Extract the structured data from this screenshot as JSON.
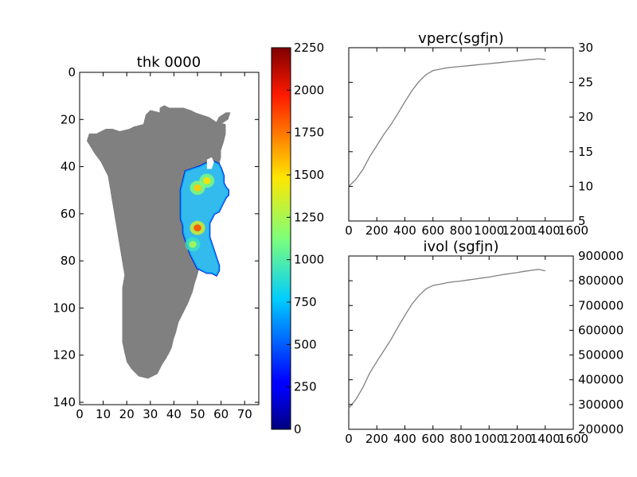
{
  "figure": {
    "background_color": "#ffffff",
    "axis_color": "#000000"
  },
  "chart_data": [
    {
      "type": "heatmap",
      "title": "thk 0000",
      "xlim": [
        0,
        76
      ],
      "ylim": [
        141,
        0
      ],
      "x_ticks": [
        "0",
        "10",
        "20",
        "30",
        "40",
        "50",
        "60",
        "70"
      ],
      "y_ticks": [
        "0",
        "20",
        "40",
        "60",
        "80",
        "100",
        "120",
        "140"
      ],
      "mask_color": "#808080",
      "grid": false,
      "landmass_outline": [
        [
          23,
          23
        ],
        [
          27,
          22
        ],
        [
          28,
          18
        ],
        [
          30,
          16
        ],
        [
          34,
          17
        ],
        [
          34,
          15
        ],
        [
          36,
          14
        ],
        [
          38,
          15
        ],
        [
          41,
          15
        ],
        [
          44,
          15
        ],
        [
          47,
          16
        ],
        [
          49,
          17
        ],
        [
          52,
          18
        ],
        [
          55,
          19
        ],
        [
          58,
          21
        ],
        [
          62,
          22
        ],
        [
          62,
          26
        ],
        [
          61,
          30
        ],
        [
          60,
          33
        ],
        [
          60,
          36
        ],
        [
          59,
          40
        ],
        [
          59,
          44
        ],
        [
          58,
          49
        ],
        [
          57,
          53
        ],
        [
          56,
          57
        ],
        [
          55,
          62
        ],
        [
          54,
          67
        ],
        [
          53,
          72
        ],
        [
          52,
          77
        ],
        [
          51,
          82
        ],
        [
          50,
          86
        ],
        [
          49,
          89
        ],
        [
          48,
          93
        ],
        [
          46,
          98
        ],
        [
          44,
          102
        ],
        [
          42,
          106
        ],
        [
          41,
          110
        ],
        [
          40,
          113
        ],
        [
          39,
          117
        ],
        [
          37,
          121
        ],
        [
          35,
          124
        ],
        [
          33,
          128
        ],
        [
          29,
          130
        ],
        [
          25,
          129
        ],
        [
          22,
          126
        ],
        [
          20,
          123
        ],
        [
          19,
          119
        ],
        [
          18,
          114
        ],
        [
          18,
          109
        ],
        [
          18,
          104
        ],
        [
          18,
          98
        ],
        [
          18,
          92
        ],
        [
          19,
          86
        ],
        [
          18,
          80
        ],
        [
          17,
          74
        ],
        [
          16,
          68
        ],
        [
          15,
          62
        ],
        [
          14,
          56
        ],
        [
          13,
          50
        ],
        [
          12,
          44
        ],
        [
          9,
          38
        ],
        [
          6,
          34
        ],
        [
          3,
          29
        ],
        [
          4,
          26
        ],
        [
          7,
          26
        ],
        [
          9,
          25
        ],
        [
          11,
          24
        ],
        [
          14,
          24
        ],
        [
          17,
          25
        ],
        [
          21,
          24
        ]
      ],
      "island_outline": [
        [
          57,
          23
        ],
        [
          59,
          19
        ],
        [
          62,
          17
        ],
        [
          64,
          17
        ],
        [
          63,
          20
        ],
        [
          60,
          22
        ]
      ],
      "ice_body_outline": [
        [
          44,
          46
        ],
        [
          45,
          42
        ],
        [
          48,
          41
        ],
        [
          51,
          40
        ],
        [
          53,
          39
        ],
        [
          55,
          38
        ],
        [
          57,
          38
        ],
        [
          59,
          39
        ],
        [
          60,
          41
        ],
        [
          61,
          44
        ],
        [
          61,
          47
        ],
        [
          62,
          49
        ],
        [
          63,
          50
        ],
        [
          63,
          52
        ],
        [
          62,
          53
        ],
        [
          61,
          55
        ],
        [
          60,
          57
        ],
        [
          59,
          59
        ],
        [
          57,
          60
        ],
        [
          56,
          62
        ],
        [
          55,
          64
        ],
        [
          55,
          67
        ],
        [
          55,
          70
        ],
        [
          56,
          73
        ],
        [
          57,
          76
        ],
        [
          58,
          79
        ],
        [
          59,
          82
        ],
        [
          59,
          84
        ],
        [
          58,
          86
        ],
        [
          56,
          85
        ],
        [
          54,
          85
        ],
        [
          52,
          84
        ],
        [
          50,
          83
        ],
        [
          49,
          81
        ],
        [
          48,
          79
        ],
        [
          47,
          77
        ],
        [
          46,
          74
        ],
        [
          45,
          71
        ],
        [
          44,
          68
        ],
        [
          44,
          65
        ],
        [
          43,
          62
        ],
        [
          43,
          59
        ],
        [
          43,
          56
        ],
        [
          43,
          53
        ],
        [
          43,
          50
        ]
      ],
      "ice_hole_outline": [
        [
          54,
          37
        ],
        [
          56,
          36
        ],
        [
          57,
          38
        ],
        [
          56,
          41
        ],
        [
          54,
          41
        ]
      ],
      "hotspots": [
        {
          "x": 50,
          "y": 66,
          "value": 1850
        },
        {
          "x": 50,
          "y": 49,
          "value": 1550
        },
        {
          "x": 54,
          "y": 46,
          "value": 1500
        },
        {
          "x": 48,
          "y": 73,
          "value": 1250
        }
      ],
      "colorbar": {
        "min": 0,
        "max": 2250,
        "ticks": [
          "0",
          "250",
          "500",
          "750",
          "1000",
          "1250",
          "1500",
          "1750",
          "2000",
          "2250"
        ],
        "colormap": "jet"
      }
    },
    {
      "type": "line",
      "title": "vperc(sgfjn)",
      "xlim": [
        0,
        1600
      ],
      "ylim": [
        5,
        30
      ],
      "x_ticks": [
        "0",
        "200",
        "400",
        "600",
        "800",
        "1000",
        "1200",
        "1400",
        "1600"
      ],
      "y_ticks": [
        "5",
        "10",
        "15",
        "20",
        "25",
        "30"
      ],
      "y_axis_side": "right",
      "series": [
        {
          "color": "#808080",
          "x": [
            0,
            50,
            100,
            150,
            200,
            250,
            300,
            350,
            400,
            450,
            500,
            550,
            600,
            650,
            700,
            750,
            800,
            850,
            900,
            950,
            1000,
            1050,
            1100,
            1150,
            1200,
            1250,
            1300,
            1350,
            1400
          ],
          "y": [
            10.0,
            11.0,
            12.4,
            14.3,
            15.9,
            17.5,
            18.9,
            20.5,
            22.2,
            23.8,
            25.1,
            26.1,
            26.7,
            26.9,
            27.1,
            27.2,
            27.3,
            27.4,
            27.5,
            27.6,
            27.7,
            27.8,
            27.9,
            28.0,
            28.1,
            28.2,
            28.3,
            28.4,
            28.3
          ]
        }
      ]
    },
    {
      "type": "line",
      "title": "ivol (sgfjn)",
      "xlim": [
        0,
        1600
      ],
      "ylim": [
        200000,
        900000
      ],
      "x_ticks": [
        "0",
        "200",
        "400",
        "600",
        "800",
        "1000",
        "1200",
        "1400",
        "1600"
      ],
      "y_ticks": [
        "200000",
        "300000",
        "400000",
        "500000",
        "600000",
        "700000",
        "800000",
        "900000"
      ],
      "y_axis_side": "right",
      "series": [
        {
          "color": "#808080",
          "x": [
            0,
            50,
            100,
            150,
            200,
            250,
            300,
            350,
            400,
            450,
            500,
            550,
            600,
            650,
            700,
            750,
            800,
            850,
            900,
            950,
            1000,
            1050,
            1100,
            1150,
            1200,
            1250,
            1300,
            1350,
            1400
          ],
          "y": [
            285000,
            320000,
            368000,
            428000,
            474000,
            518000,
            562000,
            612000,
            660000,
            705000,
            740000,
            767000,
            781000,
            786000,
            792000,
            796000,
            799000,
            803000,
            807000,
            811000,
            815000,
            820000,
            825000,
            829000,
            833000,
            838000,
            842000,
            846000,
            840000
          ]
        }
      ]
    }
  ]
}
